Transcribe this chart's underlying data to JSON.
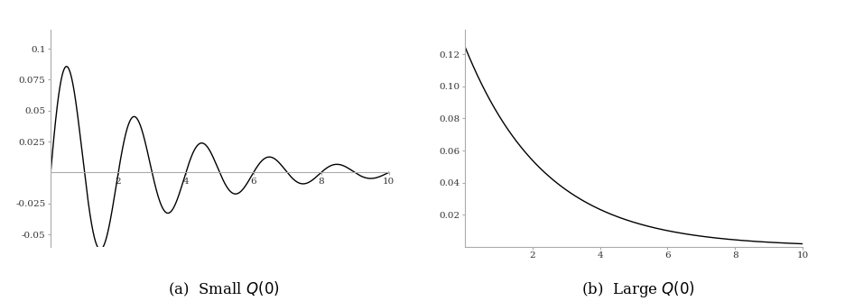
{
  "plot_a": {
    "xlim": [
      0,
      10
    ],
    "ylim": [
      -0.06,
      0.115
    ],
    "xticks": [
      2,
      4,
      6,
      8,
      10
    ],
    "yticks": [
      -0.05,
      -0.025,
      0.025,
      0.05,
      0.075,
      0.1
    ],
    "ytick_labels": [
      "-0.05",
      "-0.025",
      "0.025",
      "0.05",
      "0.075",
      "0.1"
    ],
    "caption": "(a)  Small $Q(0)$",
    "amplitude": 0.1,
    "decay": 0.32,
    "omega": 3.14159
  },
  "plot_b": {
    "xlim": [
      0,
      10
    ],
    "ylim": [
      0,
      0.135
    ],
    "xticks": [
      2,
      4,
      6,
      8,
      10
    ],
    "yticks": [
      0.02,
      0.04,
      0.06,
      0.08,
      0.1,
      0.12
    ],
    "ytick_labels": [
      "0.02",
      "0.04",
      "0.06",
      "0.08",
      "0.10",
      "0.12"
    ],
    "caption": "(b)  Large $Q(0)$",
    "amplitude": 0.125,
    "decay": 0.42
  },
  "line_color": "#000000",
  "line_width": 1.0,
  "bg_color": "#ffffff",
  "tick_fontsize": 7.5,
  "caption_fontsize": 12,
  "spine_color": "#aaaaaa"
}
